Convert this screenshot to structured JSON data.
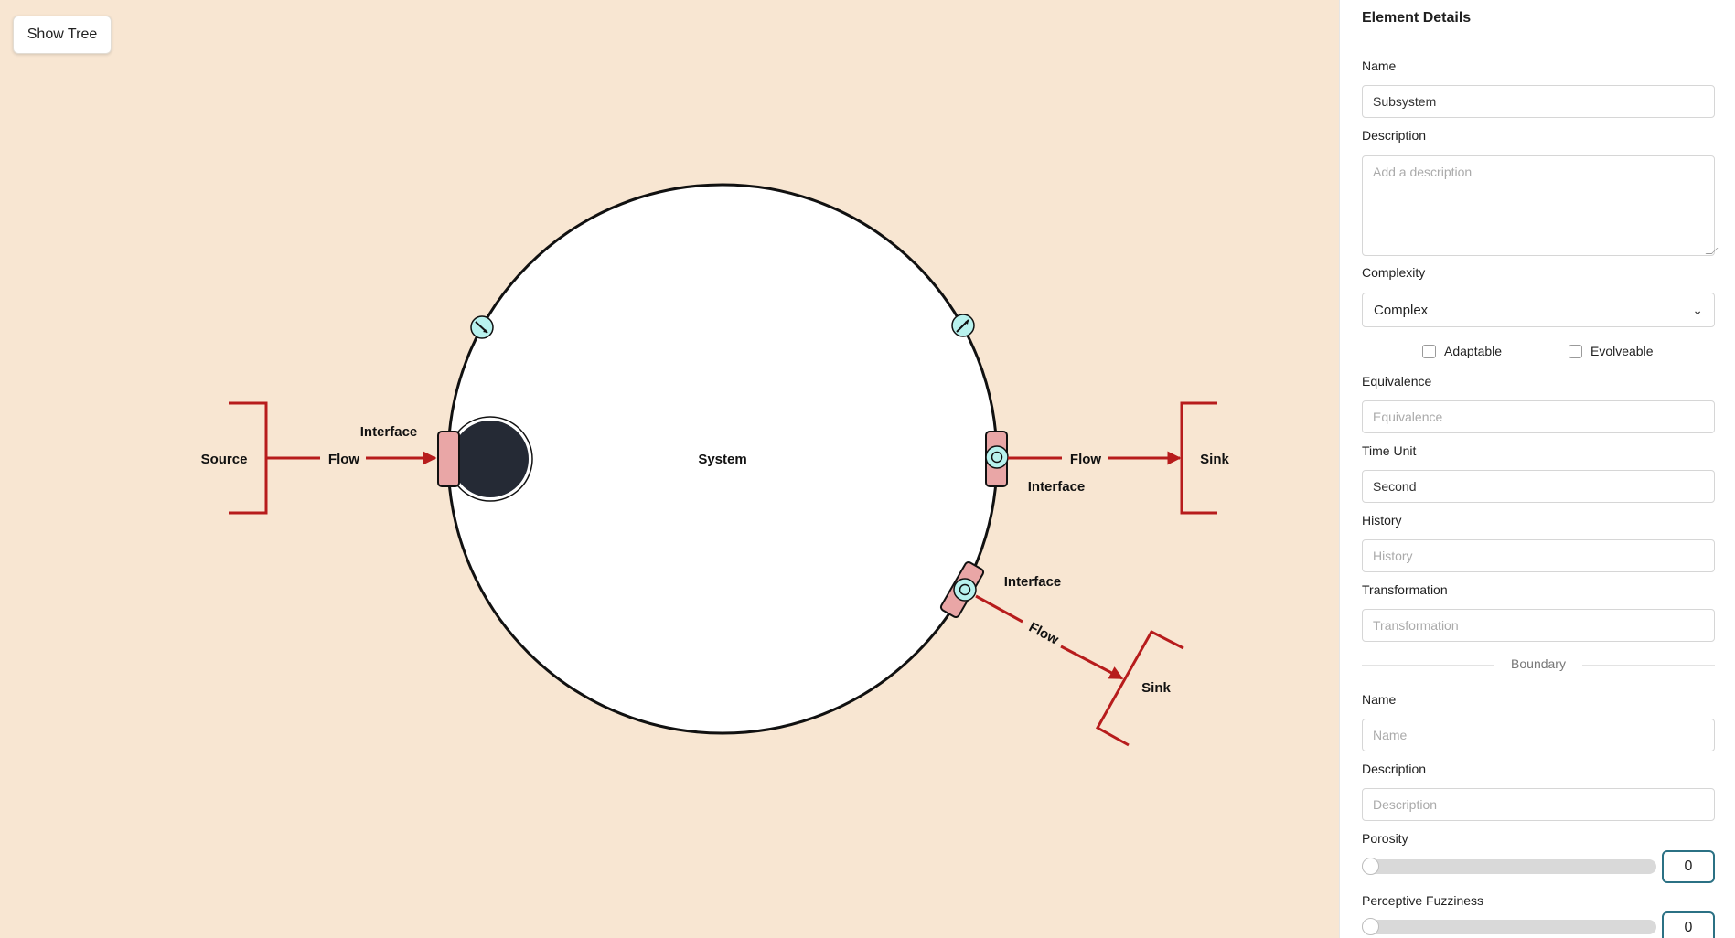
{
  "toolbar": {
    "show_tree": "Show Tree"
  },
  "diagram": {
    "system": "System",
    "source": "Source",
    "sinks": [
      "Sink",
      "Sink"
    ],
    "interfaces": [
      "Interface",
      "Interface",
      "Interface"
    ],
    "flows": [
      "Flow",
      "Flow",
      "Flow"
    ],
    "colors": {
      "background": "#f8e6d2",
      "system_fill": "#ffffff",
      "flow": "#b71c1c",
      "interface_fill": "#e9a6a6",
      "port_fill": "#b8f2ee",
      "subsystem_fill": "#252a35"
    }
  },
  "panel": {
    "title": "Element Details",
    "name_label": "Name",
    "name_value": "Subsystem",
    "description_label": "Description",
    "description_placeholder": "Add a description",
    "complexity_label": "Complexity",
    "complexity_value": "Complex",
    "adaptable_label": "Adaptable",
    "adaptable_checked": false,
    "evolveable_label": "Evolveable",
    "evolveable_checked": false,
    "equivalence_label": "Equivalence",
    "equivalence_placeholder": "Equivalence",
    "time_unit_label": "Time Unit",
    "time_unit_value": "Second",
    "history_label": "History",
    "history_placeholder": "History",
    "transformation_label": "Transformation",
    "transformation_placeholder": "Transformation",
    "boundary_label": "Boundary",
    "boundary_name_label": "Name",
    "boundary_name_placeholder": "Name",
    "boundary_description_label": "Description",
    "boundary_description_placeholder": "Description",
    "porosity_label": "Porosity",
    "porosity_value": "0",
    "fuzziness_label": "Perceptive Fuzziness",
    "fuzziness_value": "0"
  }
}
